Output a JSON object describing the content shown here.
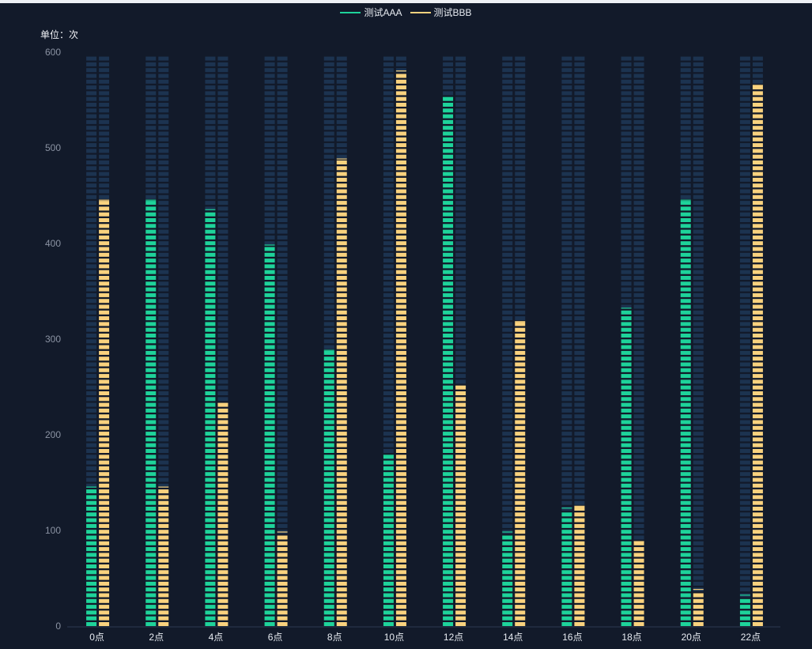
{
  "colors": {
    "background": "#121a2a",
    "bar_track": "#1c3350",
    "series_a": "#1ed39a",
    "series_b": "#f9d27e",
    "axis_line": "#2c3a52",
    "y_tick_text": "#8b93a3",
    "x_tick_text": "#e8ecf2"
  },
  "legend": {
    "series_a_label": "测试AAA",
    "series_b_label": "测试BBB"
  },
  "unit_label": "单位：次",
  "chart_data": {
    "type": "bar",
    "style": "segmented",
    "categories": [
      "0点",
      "2点",
      "4点",
      "6点",
      "8点",
      "10点",
      "12点",
      "14点",
      "16点",
      "18点",
      "20点",
      "22点"
    ],
    "series": [
      {
        "name": "测试AAA",
        "values": [
          145,
          445,
          435,
          398,
          288,
          178,
          552,
          98,
          123,
          332,
          445,
          32
        ]
      },
      {
        "name": "测试BBB",
        "values": [
          445,
          145,
          232,
          98,
          488,
          580,
          250,
          318,
          125,
          88,
          38,
          565
        ]
      }
    ],
    "ylim": [
      0,
      600
    ],
    "yticks": [
      0,
      100,
      200,
      300,
      400,
      500,
      600
    ],
    "xlabel": "",
    "ylabel": "单位：次",
    "legend_position": "top-center",
    "grid": false
  }
}
